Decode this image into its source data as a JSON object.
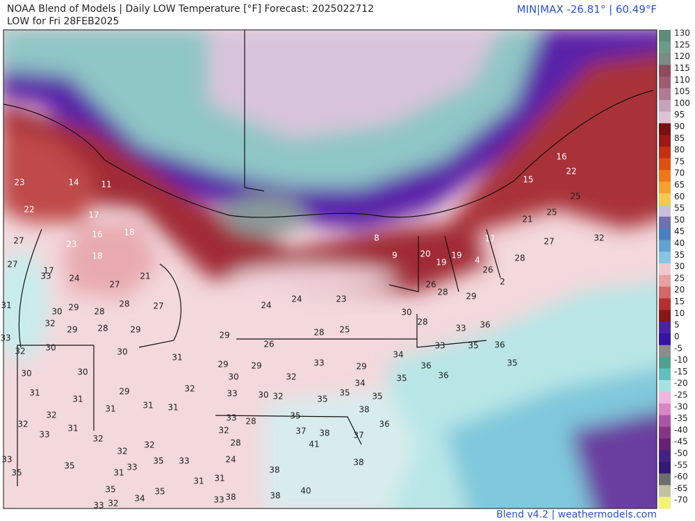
{
  "header": {
    "title": "NOAA Blend of Models | Daily LOW Temperature [°F] Forecast: 2025022712",
    "subtitle": "LOW for Fri 28FEB2025",
    "minmax": "MIN|MAX -26.81° | 60.49°F"
  },
  "colorbar": {
    "ticks": [
      130,
      125,
      120,
      115,
      110,
      105,
      100,
      95,
      90,
      85,
      80,
      75,
      70,
      65,
      60,
      55,
      50,
      45,
      40,
      35,
      30,
      25,
      20,
      15,
      10,
      5,
      0,
      -5,
      -10,
      -15,
      -20,
      -25,
      -30,
      -35,
      -40,
      -45,
      -50,
      -55,
      -60,
      -65,
      -70
    ],
    "colors": [
      "#5e8c78",
      "#6c9c88",
      "#7d8a86",
      "#8c4c5c",
      "#9e5c70",
      "#b27a92",
      "#c8a2ba",
      "#dcc4d4",
      "#781010",
      "#9a1818",
      "#c43010",
      "#de5010",
      "#ee7818",
      "#f6a032",
      "#f6c850",
      "#c8c0d8",
      "#7070b0",
      "#4a7fc0",
      "#62a2d2",
      "#88c4e4",
      "#f0c8d0",
      "#e8a0a0",
      "#d46868",
      "#b43030",
      "#861818",
      "#4a24a8",
      "#3414a0",
      "#8c8c8c",
      "#50a090",
      "#60c0c0",
      "#a4e2e2",
      "#f0b6e2",
      "#d886c6",
      "#aa56a8",
      "#863486",
      "#662272",
      "#442282",
      "#321a74",
      "#6e6e6e",
      "#c2c2a2",
      "#f2f276"
    ]
  },
  "stations": [
    23,
    14,
    11,
    22,
    17,
    27,
    23,
    16,
    18,
    18,
    27,
    17,
    33,
    24,
    27,
    21,
    31,
    30,
    29,
    28,
    28,
    27,
    32,
    29,
    28,
    29,
    33,
    32,
    30,
    30,
    31,
    29,
    30,
    30,
    31,
    31,
    29,
    31,
    31,
    31,
    32,
    32,
    32,
    31,
    33,
    32,
    32,
    32,
    33,
    35,
    35,
    35,
    33,
    33,
    31,
    35,
    34,
    35,
    31,
    31,
    33,
    32,
    33,
    38,
    24,
    24,
    23,
    26,
    28,
    25,
    30,
    29,
    29,
    33,
    29,
    30,
    32,
    34,
    33,
    30,
    32,
    35,
    35,
    34,
    35,
    35,
    33,
    28,
    35,
    38,
    36,
    32,
    28,
    37,
    38,
    41,
    37,
    24,
    38,
    38,
    38,
    40,
    8,
    9,
    20,
    19,
    19,
    4,
    17,
    26,
    26,
    28,
    29,
    2,
    28,
    27,
    16,
    22,
    15,
    25,
    25,
    21,
    28,
    33,
    36,
    33,
    35,
    36,
    36,
    36,
    35,
    32
  ],
  "footer": "Blend v4.2 | weathermodels.com"
}
